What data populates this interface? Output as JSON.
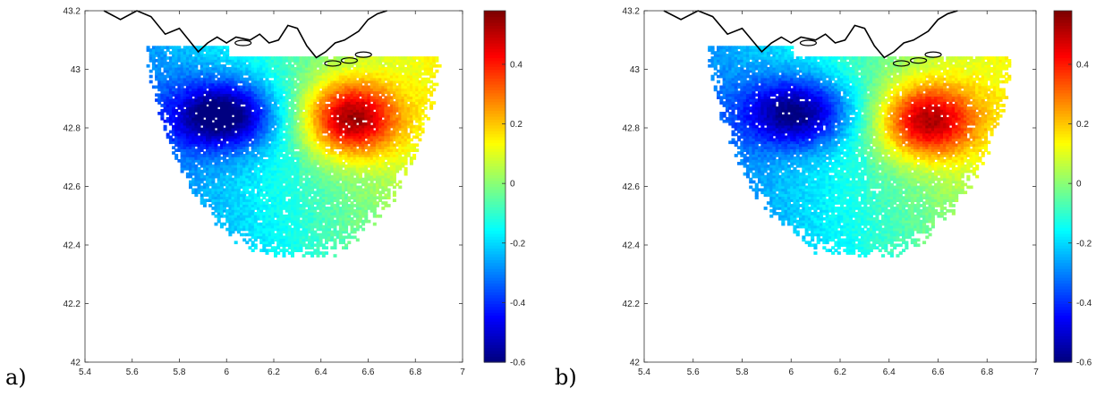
{
  "panels": [
    {
      "label": "a)",
      "xaxis": {
        "ticks": [
          "5.4",
          "5.6",
          "5.8",
          "6",
          "6.2",
          "6.4",
          "6.6",
          "6.8",
          "7"
        ],
        "range": [
          5.4,
          7.0
        ]
      },
      "yaxis": {
        "ticks": [
          "42",
          "42.2",
          "42.4",
          "42.6",
          "42.8",
          "43",
          "43.2"
        ],
        "range": [
          42.0,
          43.2
        ]
      },
      "colorbar": {
        "ticks": [
          "0.4",
          "0.2",
          "0",
          "-0.2",
          "-0.4",
          "-0.6"
        ],
        "range": [
          -0.6,
          0.58
        ],
        "colormap": "jet"
      },
      "field": {
        "negative_center": [
          5.98,
          42.84
        ],
        "positive_center": [
          6.52,
          42.83
        ],
        "min_value": -0.55,
        "max_value": 0.55
      }
    },
    {
      "label": "b)",
      "xaxis": {
        "ticks": [
          "5.4",
          "5.6",
          "5.8",
          "6",
          "6.2",
          "6.4",
          "6.6",
          "6.8",
          "7"
        ],
        "range": [
          5.4,
          7.0
        ]
      },
      "yaxis": {
        "ticks": [
          "42",
          "42.2",
          "42.4",
          "42.6",
          "42.8",
          "43",
          "43.2"
        ],
        "range": [
          42.0,
          43.2
        ]
      },
      "colorbar": {
        "ticks": [
          "0.4",
          "0.2",
          "0",
          "-0.2",
          "-0.4",
          "-0.6"
        ],
        "range": [
          -0.6,
          0.58
        ],
        "colormap": "jet"
      },
      "field": {
        "negative_center": [
          6.02,
          42.85
        ],
        "positive_center": [
          6.55,
          42.82
        ],
        "min_value": -0.5,
        "max_value": 0.52
      }
    }
  ],
  "coastline": {
    "color": "#000000",
    "points": [
      [
        5.48,
        43.2
      ],
      [
        5.55,
        43.17
      ],
      [
        5.62,
        43.2
      ],
      [
        5.68,
        43.18
      ],
      [
        5.74,
        43.12
      ],
      [
        5.8,
        43.14
      ],
      [
        5.84,
        43.1
      ],
      [
        5.88,
        43.06
      ],
      [
        5.92,
        43.09
      ],
      [
        5.96,
        43.11
      ],
      [
        6.0,
        43.09
      ],
      [
        6.04,
        43.11
      ],
      [
        6.1,
        43.1
      ],
      [
        6.14,
        43.12
      ],
      [
        6.18,
        43.09
      ],
      [
        6.22,
        43.1
      ],
      [
        6.26,
        43.15
      ],
      [
        6.3,
        43.14
      ],
      [
        6.34,
        43.08
      ],
      [
        6.38,
        43.04
      ],
      [
        6.42,
        43.06
      ],
      [
        6.46,
        43.09
      ],
      [
        6.5,
        43.1
      ],
      [
        6.56,
        43.13
      ],
      [
        6.6,
        43.17
      ],
      [
        6.64,
        43.19
      ],
      [
        6.68,
        43.2
      ]
    ]
  }
}
